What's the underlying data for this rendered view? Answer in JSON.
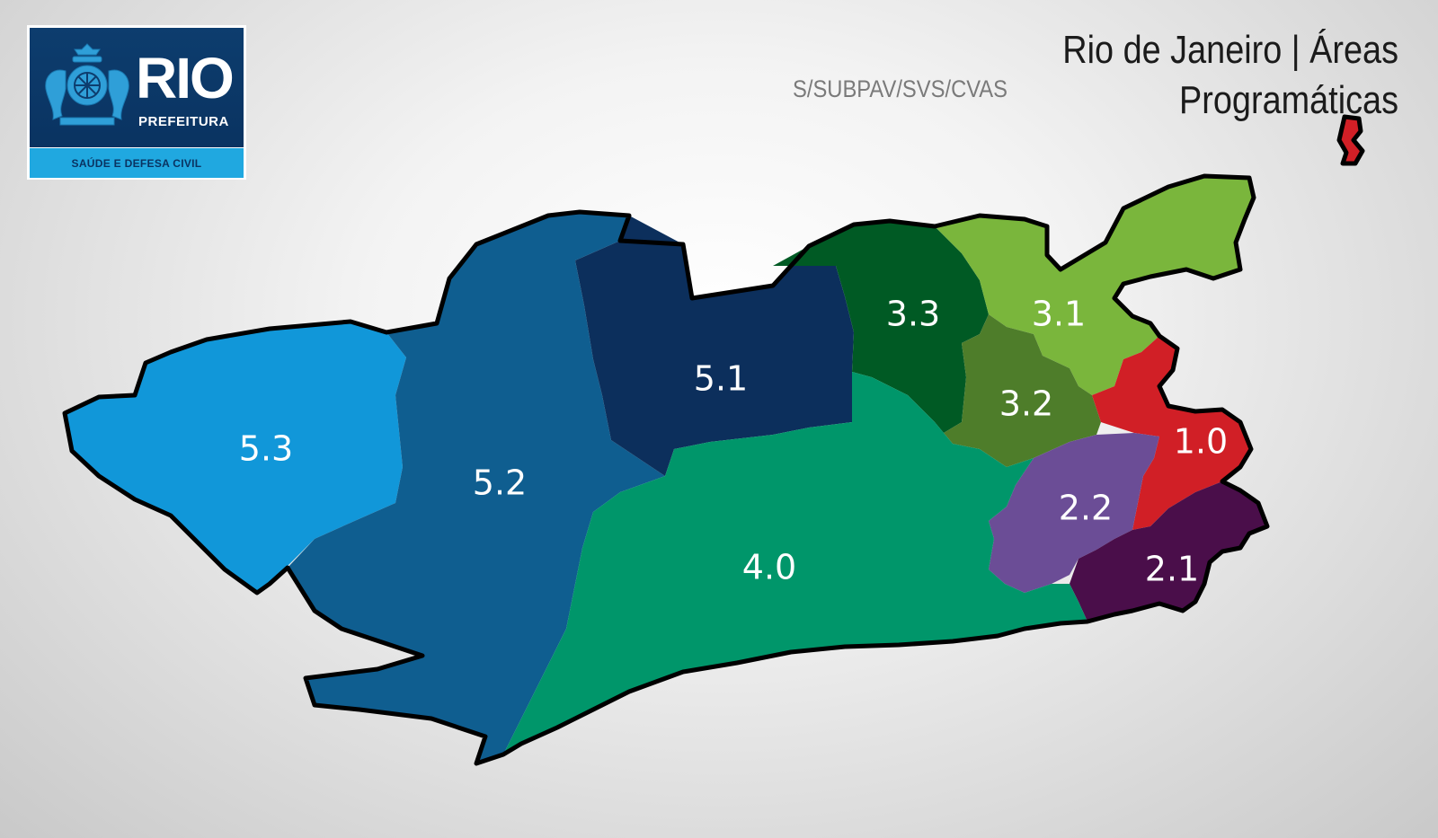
{
  "logo": {
    "brand": "RIO",
    "sub": "PREFEITURA",
    "band": "SAÚDE E DEFESA CIVIL"
  },
  "title": "Rio de Janeiro | Áreas Programáticas",
  "subtitle": "S/SUBPAV/SVS/CVAS",
  "areas": [
    {
      "id": "5.3",
      "label": "5.3",
      "color": "#1197d9"
    },
    {
      "id": "5.2",
      "label": "5.2",
      "color": "#0f5e90"
    },
    {
      "id": "5.1",
      "label": "5.1",
      "color": "#0c2f5c"
    },
    {
      "id": "4.0",
      "label": "4.0",
      "color": "#00966a"
    },
    {
      "id": "3.3",
      "label": "3.3",
      "color": "#005a24"
    },
    {
      "id": "3.1",
      "label": "3.1",
      "color": "#7ab63c"
    },
    {
      "id": "3.2",
      "label": "3.2",
      "color": "#4e7d2a"
    },
    {
      "id": "1.0",
      "label": "1.0",
      "color": "#d11f26"
    },
    {
      "id": "2.2",
      "label": "2.2",
      "color": "#6b4d96"
    },
    {
      "id": "2.1",
      "label": "2.1",
      "color": "#4a0e4a"
    }
  ]
}
